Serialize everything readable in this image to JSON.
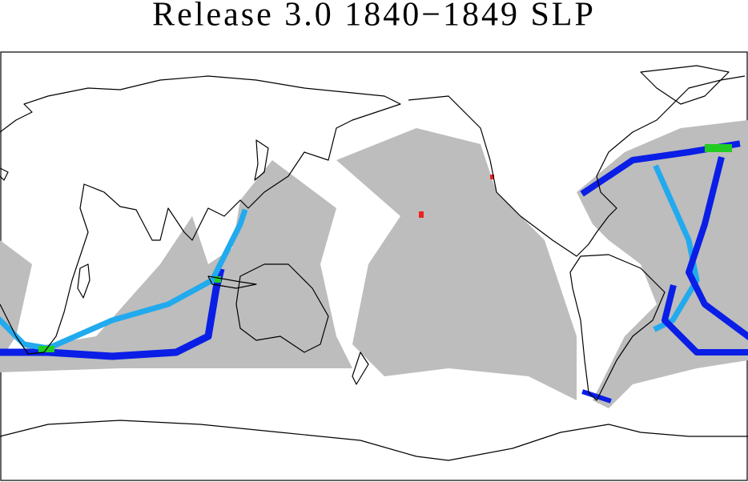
{
  "title": "Release 3.0 1840−1849 SLP"
}
